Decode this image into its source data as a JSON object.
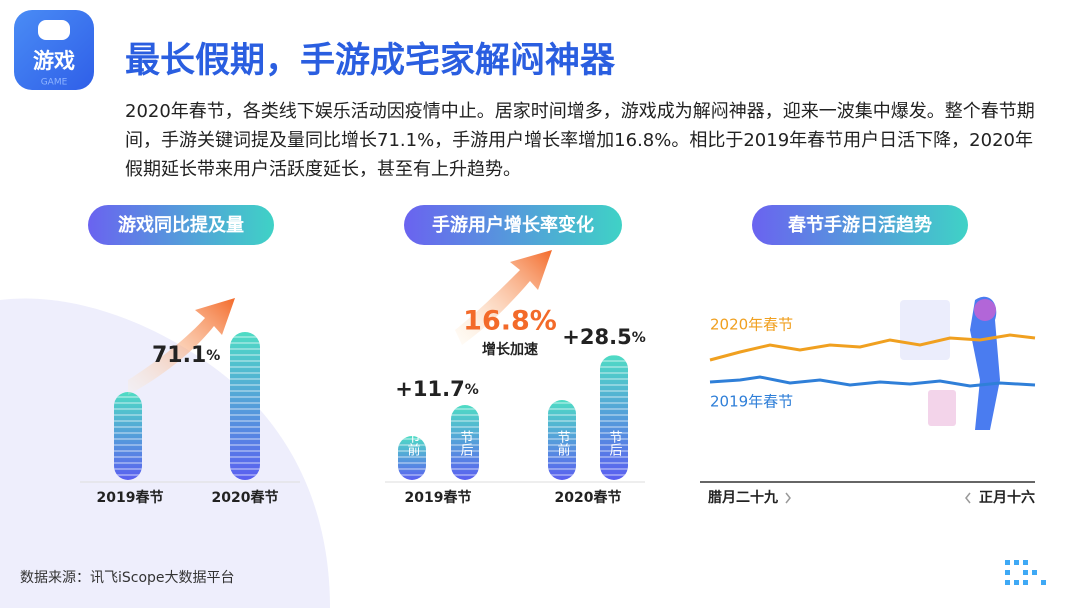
{
  "badge": {
    "title": "游戏",
    "subtitle": "GAME"
  },
  "title": "最长假期，手游成宅家解闷神器",
  "body": "2020年春节，各类线下娱乐活动因疫情中止。居家时间增多，游戏成为解闷神器，迎来一波集中爆发。整个春节期间，手游关键词提及量同比增长71.1%，手游用户增长率增加16.8%。相比于2019年春节用户日活下降，2020年假期延长带来用户活跃度延长，甚至有上升趋势。",
  "panels": [
    {
      "heading": "游戏同比提及量",
      "change": {
        "value": "71.1",
        "unit": "%"
      },
      "bars": [
        "2019春节",
        "2020春节"
      ]
    },
    {
      "heading": "手游用户增长率变化",
      "highlight": {
        "value": "16.8%",
        "caption": "增长加速"
      },
      "groups": [
        {
          "label": "2019春节",
          "change": {
            "value": "+11.7",
            "unit": "%"
          },
          "bars": [
            "节前",
            "节后"
          ]
        },
        {
          "label": "2020春节",
          "change": {
            "value": "+28.5",
            "unit": "%"
          },
          "bars": [
            "节前",
            "节后"
          ]
        }
      ]
    },
    {
      "heading": "春节手游日活趋势",
      "series": [
        "2020年春节",
        "2019年春节"
      ],
      "start": "腊月二十九",
      "end": "正月十六"
    }
  ],
  "source": "数据来源：讯飞iScope大数据平台"
}
